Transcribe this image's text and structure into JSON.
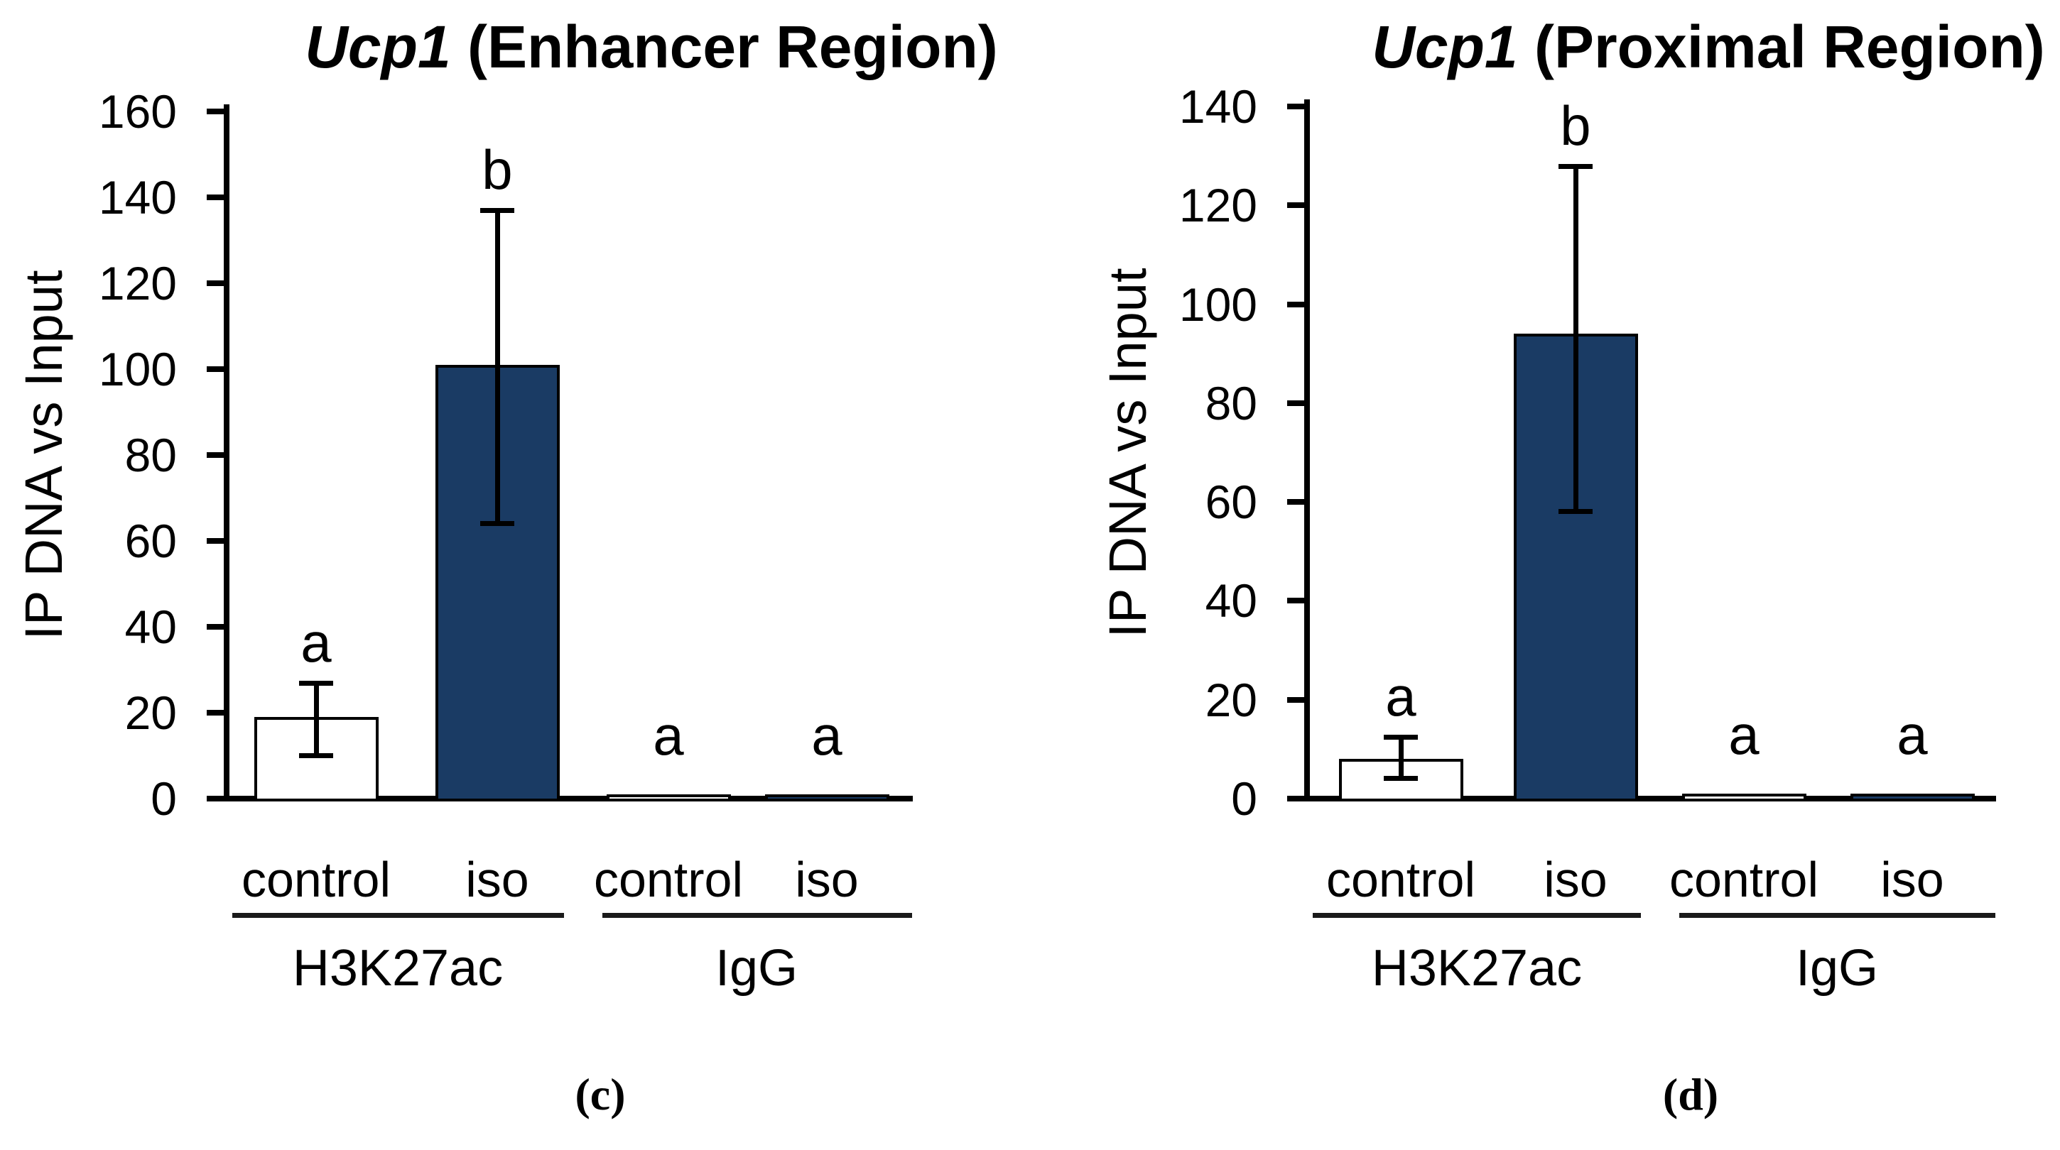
{
  "figure": {
    "panel_labels": [
      "(c)",
      "(d)"
    ]
  },
  "chart_data": [
    {
      "type": "bar",
      "panel": "c",
      "title_gene": "Ucp1",
      "title_rest": " (Enhancer Region)",
      "ylabel": "IP DNA vs Input",
      "ylim": [
        0,
        160
      ],
      "ytick_step": 20,
      "ytick_labels": [
        "0",
        "20",
        "40",
        "60",
        "80",
        "100",
        "120",
        "140",
        "160"
      ],
      "grid": false,
      "legend": "none",
      "categories": [
        "control",
        "iso",
        "control",
        "iso"
      ],
      "groups": [
        "H3K27ac",
        "IgG"
      ],
      "values": [
        19,
        101,
        1,
        1
      ],
      "err_lo": [
        10,
        64,
        null,
        null
      ],
      "err_hi": [
        27,
        137,
        null,
        null
      ],
      "sig_letters": [
        "a",
        "b",
        "a",
        "a"
      ],
      "bar_fills": [
        "#FFFFFF",
        "#1A3B64",
        "#FFFFFF",
        "#1A3B64"
      ],
      "bar_border_color": "#000000"
    },
    {
      "type": "bar",
      "panel": "d",
      "title_gene": "Ucp1",
      "title_rest": " (Proximal Region)",
      "ylabel": "IP DNA vs Input",
      "ylim": [
        0,
        140
      ],
      "ytick_step": 20,
      "ytick_labels": [
        "0",
        "20",
        "40",
        "60",
        "80",
        "100",
        "120",
        "140"
      ],
      "grid": false,
      "legend": "none",
      "categories": [
        "control",
        "iso",
        "control",
        "iso"
      ],
      "groups": [
        "H3K27ac",
        "IgG"
      ],
      "values": [
        8,
        94,
        1,
        1
      ],
      "err_lo": [
        4,
        58,
        null,
        null
      ],
      "err_hi": [
        12.5,
        128,
        null,
        null
      ],
      "sig_letters": [
        "a",
        "b",
        "a",
        "a"
      ],
      "bar_fills": [
        "#FFFFFF",
        "#1A3B64",
        "#FFFFFF",
        "#1A3B64"
      ],
      "bar_border_color": "#000000"
    }
  ],
  "colors": {
    "bar_navy": "#1A3B64",
    "bar_white": "#FFFFFF",
    "axis_black": "#000000",
    "background": "#FFFFFF"
  }
}
